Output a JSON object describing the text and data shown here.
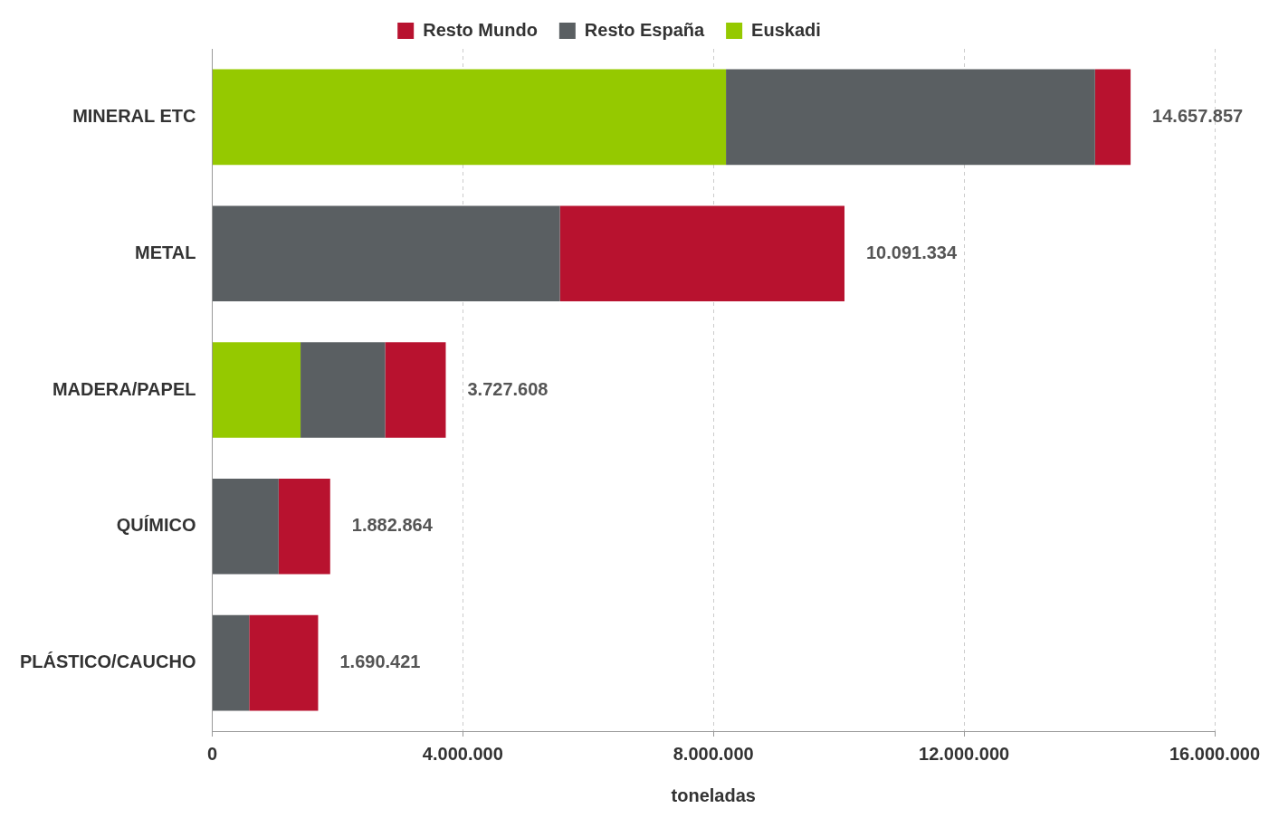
{
  "chart_data": {
    "type": "bar",
    "orientation": "horizontal",
    "stacked": true,
    "xlabel": "toneladas",
    "categories": [
      "MINERAL ETC",
      "METAL",
      "MADERA/PAPEL",
      "QUÍMICO",
      "PLÁSTICO/CAUCHO"
    ],
    "series": [
      {
        "name": "Euskadi",
        "color": "#95c900",
        "values": [
          8200000,
          null,
          1410000,
          null,
          null
        ]
      },
      {
        "name": "Resto España",
        "color": "#5a5f62",
        "values": [
          5890000,
          5550000,
          1350000,
          1060000,
          590000
        ]
      },
      {
        "name": "Resto Mundo",
        "color": "#b8122f",
        "values": [
          567857,
          4541334,
          967608,
          822864,
          1100421
        ]
      }
    ],
    "totals": [
      "14.657.857",
      "10.091.334",
      "3.727.608",
      "1.882.864",
      "1.690.421"
    ],
    "xlim": [
      0,
      16000000
    ],
    "xticks": [
      0,
      {
        "value": 4000000,
        "label": "4.000.000"
      },
      {
        "value": 8000000,
        "label": "8.000.000"
      },
      {
        "value": 12000000,
        "label": "12.000.000"
      },
      {
        "value": 16000000,
        "label": "16.000.000"
      }
    ],
    "grid": "x",
    "legend": "top"
  }
}
